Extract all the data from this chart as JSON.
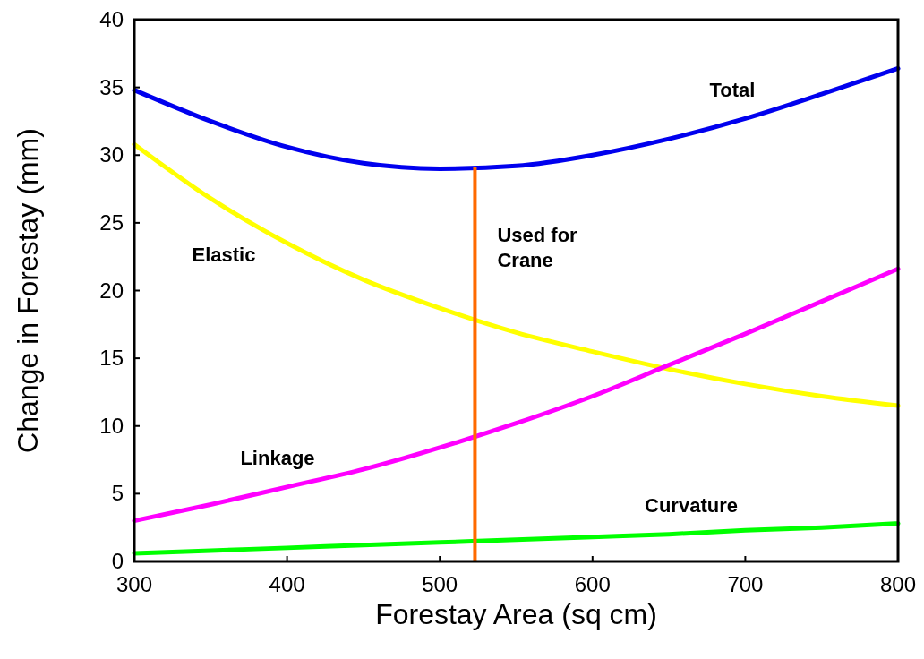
{
  "chart_data": {
    "type": "line",
    "xlabel": "Forestay Area (sq cm)",
    "ylabel": "Change in Forestay (mm)",
    "x": [
      300,
      350,
      400,
      450,
      500,
      550,
      600,
      650,
      700,
      750,
      800
    ],
    "series": [
      {
        "name": "Total",
        "color": "#0000ee",
        "values": [
          34.8,
          32.5,
          30.6,
          29.4,
          29.0,
          29.2,
          30.0,
          31.2,
          32.7,
          34.5,
          36.4
        ]
      },
      {
        "name": "Elastic",
        "color": "#ffff00",
        "values": [
          30.8,
          26.8,
          23.5,
          20.8,
          18.7,
          16.9,
          15.5,
          14.2,
          13.1,
          12.2,
          11.5
        ]
      },
      {
        "name": "Linkage",
        "color": "#ff00ff",
        "values": [
          3.0,
          4.2,
          5.5,
          6.8,
          8.4,
          10.2,
          12.2,
          14.5,
          16.8,
          19.2,
          21.6
        ]
      },
      {
        "name": "Curvature",
        "color": "#00ff00",
        "values": [
          0.6,
          0.8,
          1.0,
          1.2,
          1.4,
          1.6,
          1.8,
          2.0,
          2.3,
          2.5,
          2.8
        ]
      }
    ],
    "xlim": [
      300,
      800
    ],
    "xticks": [
      300,
      400,
      500,
      600,
      700,
      800
    ],
    "ylim": [
      0,
      40
    ],
    "yticks": [
      0,
      5,
      10,
      15,
      20,
      25,
      30,
      35,
      40
    ],
    "ref_lines": [
      {
        "axis": "x",
        "value": 523,
        "label": "Used for Crane",
        "color": "#ff6a00"
      }
    ],
    "grid": false,
    "legend": false,
    "marker": "none",
    "line_style": "solid"
  }
}
